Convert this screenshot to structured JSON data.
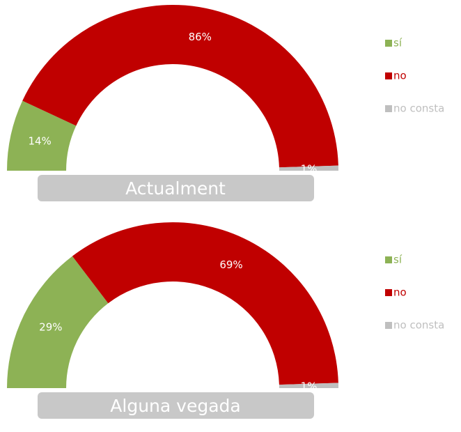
{
  "chart_data": [
    {
      "type": "pie",
      "title": "Actualment",
      "categories": [
        "sí",
        "no",
        "no consta"
      ],
      "values": [
        14,
        86,
        1
      ],
      "value_labels": [
        "14%",
        "86%",
        "1%"
      ],
      "colors": [
        "#8db255",
        "#c00000",
        "#bfbfbf"
      ],
      "legend": "right"
    },
    {
      "type": "pie",
      "title": "Alguna vegada",
      "categories": [
        "sí",
        "no",
        "no consta"
      ],
      "values": [
        29,
        69,
        1
      ],
      "value_labels": [
        "29%",
        "69%",
        "1%"
      ],
      "colors": [
        "#8db255",
        "#c00000",
        "#bfbfbf"
      ],
      "legend": "right"
    }
  ]
}
